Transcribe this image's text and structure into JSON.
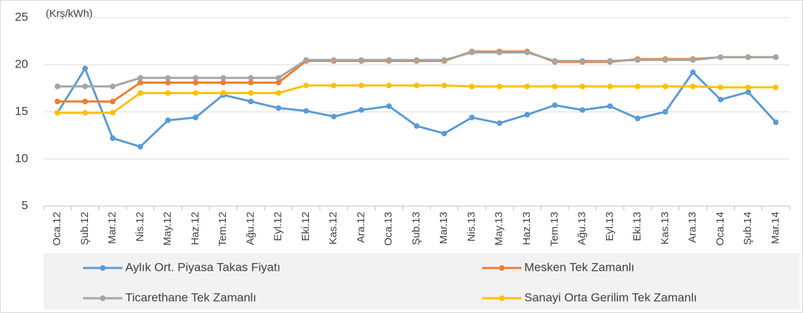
{
  "chart_data": {
    "type": "line",
    "annotation": "(Krş/kWh)",
    "categories": [
      "Oca.12",
      "Şub.12",
      "Mar.12",
      "Nis.12",
      "May.12",
      "Haz.12",
      "Tem.12",
      "Ağu.12",
      "Eyl.12",
      "Eki.12",
      "Kas.12",
      "Ara.12",
      "Oca.13",
      "Şub.13",
      "Mar.13",
      "Nis.13",
      "May.13",
      "Haz.13",
      "Tem.13",
      "Ağu.13",
      "Eyl.13",
      "Eki.13",
      "Kas.13",
      "Ara.13",
      "Oca.14",
      "Şub.14",
      "Mar.14"
    ],
    "series": [
      {
        "name": "Aylık Ort. Piyasa Takas Fiyatı",
        "color": "#5b9bd5",
        "values": [
          14.9,
          19.6,
          12.2,
          11.3,
          14.1,
          14.4,
          16.8,
          16.1,
          15.4,
          15.1,
          14.5,
          15.2,
          15.6,
          13.5,
          12.7,
          14.4,
          13.8,
          14.7,
          15.7,
          15.2,
          15.6,
          14.3,
          15.0,
          19.2,
          16.3,
          17.1,
          13.9
        ]
      },
      {
        "name": "Mesken Tek Zamanlı",
        "color": "#ed7d31",
        "values": [
          16.1,
          16.1,
          16.1,
          18.1,
          18.1,
          18.1,
          18.1,
          18.1,
          18.1,
          20.4,
          20.4,
          20.4,
          20.4,
          20.4,
          20.4,
          21.4,
          21.4,
          21.4,
          20.3,
          20.3,
          20.3,
          20.6,
          20.6,
          20.6,
          20.8,
          20.8,
          20.8
        ]
      },
      {
        "name": "Ticarethane Tek Zamanlı",
        "color": "#a5a5a5",
        "values": [
          17.7,
          17.7,
          17.7,
          18.6,
          18.6,
          18.6,
          18.6,
          18.6,
          18.6,
          20.5,
          20.5,
          20.5,
          20.5,
          20.5,
          20.5,
          21.3,
          21.3,
          21.3,
          20.4,
          20.4,
          20.4,
          20.5,
          20.5,
          20.5,
          20.8,
          20.8,
          20.8
        ]
      },
      {
        "name": "Sanayi Orta Gerilim Tek Zamanlı",
        "color": "#ffc000",
        "values": [
          14.9,
          14.9,
          14.9,
          17.0,
          17.0,
          17.0,
          17.0,
          17.0,
          17.0,
          17.8,
          17.8,
          17.8,
          17.8,
          17.8,
          17.8,
          17.7,
          17.7,
          17.7,
          17.7,
          17.7,
          17.7,
          17.7,
          17.7,
          17.7,
          17.6,
          17.6,
          17.6
        ]
      }
    ],
    "ylim": [
      5,
      25
    ],
    "yticks": [
      5,
      10,
      15,
      20,
      25
    ],
    "grid": true
  }
}
